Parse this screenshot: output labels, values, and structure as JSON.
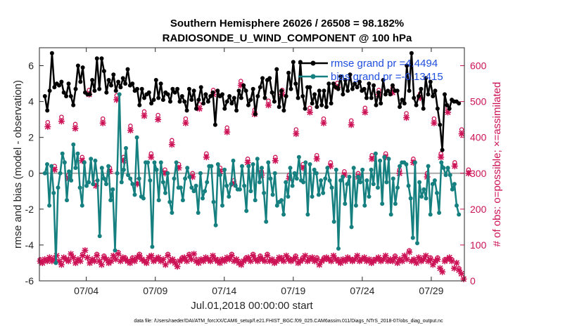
{
  "chart_data": {
    "type": "line",
    "title_line1": "Southern Hemisphere 26026 / 26508 = 98.182%",
    "title_line2": "RADIOSONDE_U_WIND_COMPONENT @ 100 hPa",
    "xlabel": "Jul.01,2018 00:00:00 start",
    "ylabel": "rmse and bias (model - observation)",
    "y2label": "# of obs: o=possible; ×=assimilated",
    "footnote": "data file: /Users/raeder/DAI/ATM_forcXX/CAM6_setup/f.e21.FHIST_BGC.f09_025.CAM6assim.011/Diags_NTrS_2018-07/obs_diag_output.nc",
    "xlim": [
      0.6,
      31.4
    ],
    "ylim": [
      -6,
      7
    ],
    "y2lim": [
      0,
      650
    ],
    "xticks": [
      {
        "v": 4,
        "label": "07/04"
      },
      {
        "v": 9,
        "label": "07/09"
      },
      {
        "v": 14,
        "label": "07/14"
      },
      {
        "v": 19,
        "label": "07/19"
      },
      {
        "v": 24,
        "label": "07/24"
      },
      {
        "v": 29,
        "label": "07/29"
      }
    ],
    "yticks": [
      -6,
      -4,
      -2,
      0,
      2,
      4,
      6
    ],
    "y2ticks": [
      0,
      100,
      200,
      300,
      400,
      500,
      600
    ],
    "colors": {
      "rmse": "#000000",
      "bias": "#168080",
      "obs": "#cc1155",
      "zero": "#aaaaaa"
    },
    "legend": [
      {
        "key": "rmse",
        "text": "rmse grand pr =4.4494"
      },
      {
        "key": "bias",
        "text": "bias grand pr =-0.13415"
      }
    ],
    "series": [
      {
        "name": "rmse",
        "values": [
          4.3,
          3.5,
          4.6,
          6.7,
          4.8,
          5.0,
          4.9,
          5.1,
          4.5,
          4.3,
          5.0,
          4.3,
          3.8,
          4.7,
          6.0,
          5.1,
          5.9,
          4.5,
          4.4,
          4.4,
          5.2,
          4.6,
          6.4,
          4.7,
          6.4,
          5.7,
          4.5,
          5.2,
          4.9,
          5.5,
          4.6,
          5.1,
          4.8,
          5.3,
          5.0,
          5.8,
          4.9,
          5.0,
          4.6,
          4.7,
          3.8,
          4.7,
          4.2,
          4.4,
          4.5,
          3.9,
          4.1,
          5.2,
          4.2,
          5.0,
          4.1,
          4.5,
          4.4,
          4.0,
          4.7,
          4.5,
          4.7,
          4.0,
          4.3,
          4.0,
          3.5,
          4.7,
          4.1,
          4.6,
          3.6,
          4.1,
          4.8,
          3.9,
          4.4,
          4.0,
          4.3,
          4.5,
          2.7,
          4.6,
          4.3,
          4.4,
          3.6,
          4.0,
          4.3,
          3.9,
          4.2,
          3.5,
          4.6,
          4.2,
          4.9,
          4.6,
          3.8,
          4.1,
          4.7,
          3.3,
          4.3,
          4.8,
          5.3,
          4.2,
          5.2,
          5.3,
          4.5,
          4.0,
          5.8,
          3.7,
          4.6,
          3.5,
          4.3,
          5.6,
          4.7,
          6.2,
          5.0,
          4.2,
          6.2,
          4.3,
          3.6,
          4.8,
          4.8,
          3.9,
          4.4,
          3.7,
          4.6,
          3.8,
          4.6,
          3.7,
          5.0,
          3.9,
          5.0,
          4.8,
          4.7,
          5.4,
          4.4,
          5.2,
          4.6,
          5.5,
          4.7,
          5.0,
          4.8,
          5.1,
          4.6,
          4.7,
          4.2,
          5.0,
          4.2,
          4.9,
          3.8,
          4.5,
          3.9,
          5.2,
          4.4,
          4.6,
          4.4,
          4.9,
          4.6,
          4.6,
          3.7,
          4.1,
          3.9,
          6.0,
          4.6,
          6.7,
          4.2,
          3.8,
          4.3,
          4.7,
          3.6,
          5.3,
          4.4,
          5.1,
          4.3,
          4.6,
          3.6,
          2.7,
          1.3,
          4.4,
          3.8,
          3.6,
          4.1,
          4.0,
          4.0,
          3.9
        ]
      },
      {
        "name": "bias",
        "values": [
          0.0,
          0.5,
          -1.8,
          0.4,
          -1.1,
          -5.0,
          -0.8,
          0.0,
          1.1,
          0.6,
          -1.5,
          0.1,
          -0.4,
          1.6,
          0.3,
          1.1,
          -0.8,
          -1.8,
          0.6,
          -0.7,
          -0.5,
          0.8,
          -0.6,
          0.7,
          -0.4,
          -3.5,
          0.3,
          -0.3,
          -0.6,
          0.4,
          -1.5,
          -0.9,
          -4.3,
          0.0,
          4.4,
          -0.5,
          0.2,
          1.4,
          -0.1,
          -0.3,
          -0.6,
          -1.2,
          2.0,
          -0.3,
          -1.3,
          -1.4,
          0.6,
          0.6,
          -0.4,
          -4.1,
          0.6,
          0.2,
          -1.5,
          0.6,
          -0.5,
          -1.1,
          0.0,
          -1.6,
          -2.2,
          -0.3,
          0.6,
          -0.8,
          -0.8,
          -1.5,
          -0.3,
          0.3,
          -0.2,
          -0.8,
          -1.0,
          -0.7,
          -2.2,
          0.0,
          -1.4,
          -1.0,
          -0.5,
          0.4,
          0.4,
          -1.6,
          -2.9,
          0.5,
          -0.1,
          -1.8,
          0.2,
          -0.7,
          -1.3,
          -0.6,
          0.7,
          -0.7,
          -0.9,
          -0.9,
          0.4,
          -0.7,
          -2.1,
          0.4,
          -1.0,
          0.5,
          -1.5,
          0.8,
          -0.5,
          0.3,
          -1.1,
          -2.7,
          0.6,
          -0.3,
          -1.2,
          0.0,
          -1.8,
          -1.6,
          -1.5,
          -2.3,
          -0.5,
          -1.3,
          0.3,
          -0.7,
          0.0,
          -0.3,
          0.9,
          -0.4,
          -0.5,
          0.6,
          -2.3,
          0.5,
          -1.3,
          0.2,
          0.0,
          -1.2,
          -0.4,
          -1.1,
          -0.3,
          0.3,
          -0.4,
          -0.8,
          -2.7,
          0.2,
          -4.2,
          -0.4,
          -0.2,
          -1.7,
          -0.6,
          -0.2,
          -3.0,
          0.3,
          -1.8,
          -0.2,
          -0.5,
          0.2,
          -1.8,
          -0.4,
          -1.3,
          0.2,
          -0.6,
          1.1,
          -0.8,
          0.7,
          -1.7,
          0.9,
          -0.5,
          0.8,
          -2.3,
          -0.3,
          -1.7,
          -0.8,
          0.4,
          0.6,
          0.6,
          0.5,
          -0.7,
          -1.4,
          -3.6,
          0.6,
          -3.9,
          -0.5,
          -1.3,
          -0.9,
          -1.4,
          0.4,
          -2.3,
          -0.6,
          -0.4,
          -1.1,
          -2.2,
          0.6,
          0.3,
          -0.1,
          0.3,
          -0.1,
          -0.9,
          -0.6,
          -1.8,
          -2.3
        ]
      },
      {
        "name": "possible",
        "obs_cycle": [
          15,
          170,
          375,
          465
        ],
        "values": [
          55,
          50,
          60,
          55,
          65,
          55,
          60,
          70,
          55,
          45,
          65,
          60,
          55,
          75,
          65,
          50,
          60,
          55,
          70,
          85,
          65,
          50,
          60,
          55,
          70,
          55,
          45,
          65,
          60,
          50,
          55,
          70,
          60,
          75,
          55,
          65,
          60,
          55,
          50,
          60,
          55,
          65,
          70,
          60,
          55,
          50,
          65,
          70,
          55,
          60,
          65,
          55,
          60,
          45,
          70,
          55,
          60,
          50,
          40,
          55,
          60,
          65,
          55,
          70,
          60,
          75,
          55,
          50,
          60,
          55,
          65,
          60,
          55,
          70,
          60,
          55,
          50,
          60,
          55,
          65,
          60,
          70,
          55,
          60,
          50,
          45,
          55,
          60,
          65,
          55,
          70,
          60,
          55,
          65,
          60,
          55,
          70,
          55,
          60,
          50,
          55,
          65,
          60,
          55,
          70,
          60,
          55,
          60,
          65,
          50,
          55,
          60,
          70,
          55,
          60,
          65,
          55,
          60,
          45,
          55,
          60,
          65,
          60,
          55,
          70,
          60,
          55,
          50,
          60,
          55,
          65,
          60,
          55,
          60,
          70,
          55,
          60,
          65,
          55,
          60,
          50,
          55,
          60,
          65,
          55,
          60,
          70,
          55,
          60,
          55,
          65,
          50,
          60,
          55,
          70,
          60,
          80,
          55,
          60,
          50,
          65,
          55,
          60,
          70,
          55,
          60,
          45,
          55,
          60,
          35,
          25,
          55,
          60,
          65,
          55,
          35,
          50,
          30,
          20,
          5
        ],
        "values_by_day_high": [
          430,
          445,
          425,
          520,
          440,
          505,
          420,
          460,
          450,
          380,
          440,
          480,
          520,
          415,
          545,
          465,
          490,
          520,
          410,
          470,
          440,
          540,
          435,
          470,
          520,
          525,
          455,
          510,
          440,
          470,
          410
        ]
      },
      {
        "name": "assimilated",
        "values_by_day_high": [
          430,
          445,
          425,
          520,
          440,
          505,
          420,
          460,
          450,
          380,
          440,
          480,
          520,
          415,
          545,
          465,
          490,
          520,
          410,
          470,
          440,
          540,
          435,
          470,
          520,
          525,
          455,
          510,
          440,
          470,
          410
        ],
        "values_by_day_mid": [
          310,
          285,
          335,
          265,
          305,
          335,
          270,
          345,
          300,
          315,
          290,
          345,
          305,
          270,
          330,
          295,
          335,
          285,
          315,
          340,
          320,
          295,
          290,
          340,
          345,
          300,
          330,
          290,
          345,
          320,
          300
        ]
      }
    ]
  }
}
